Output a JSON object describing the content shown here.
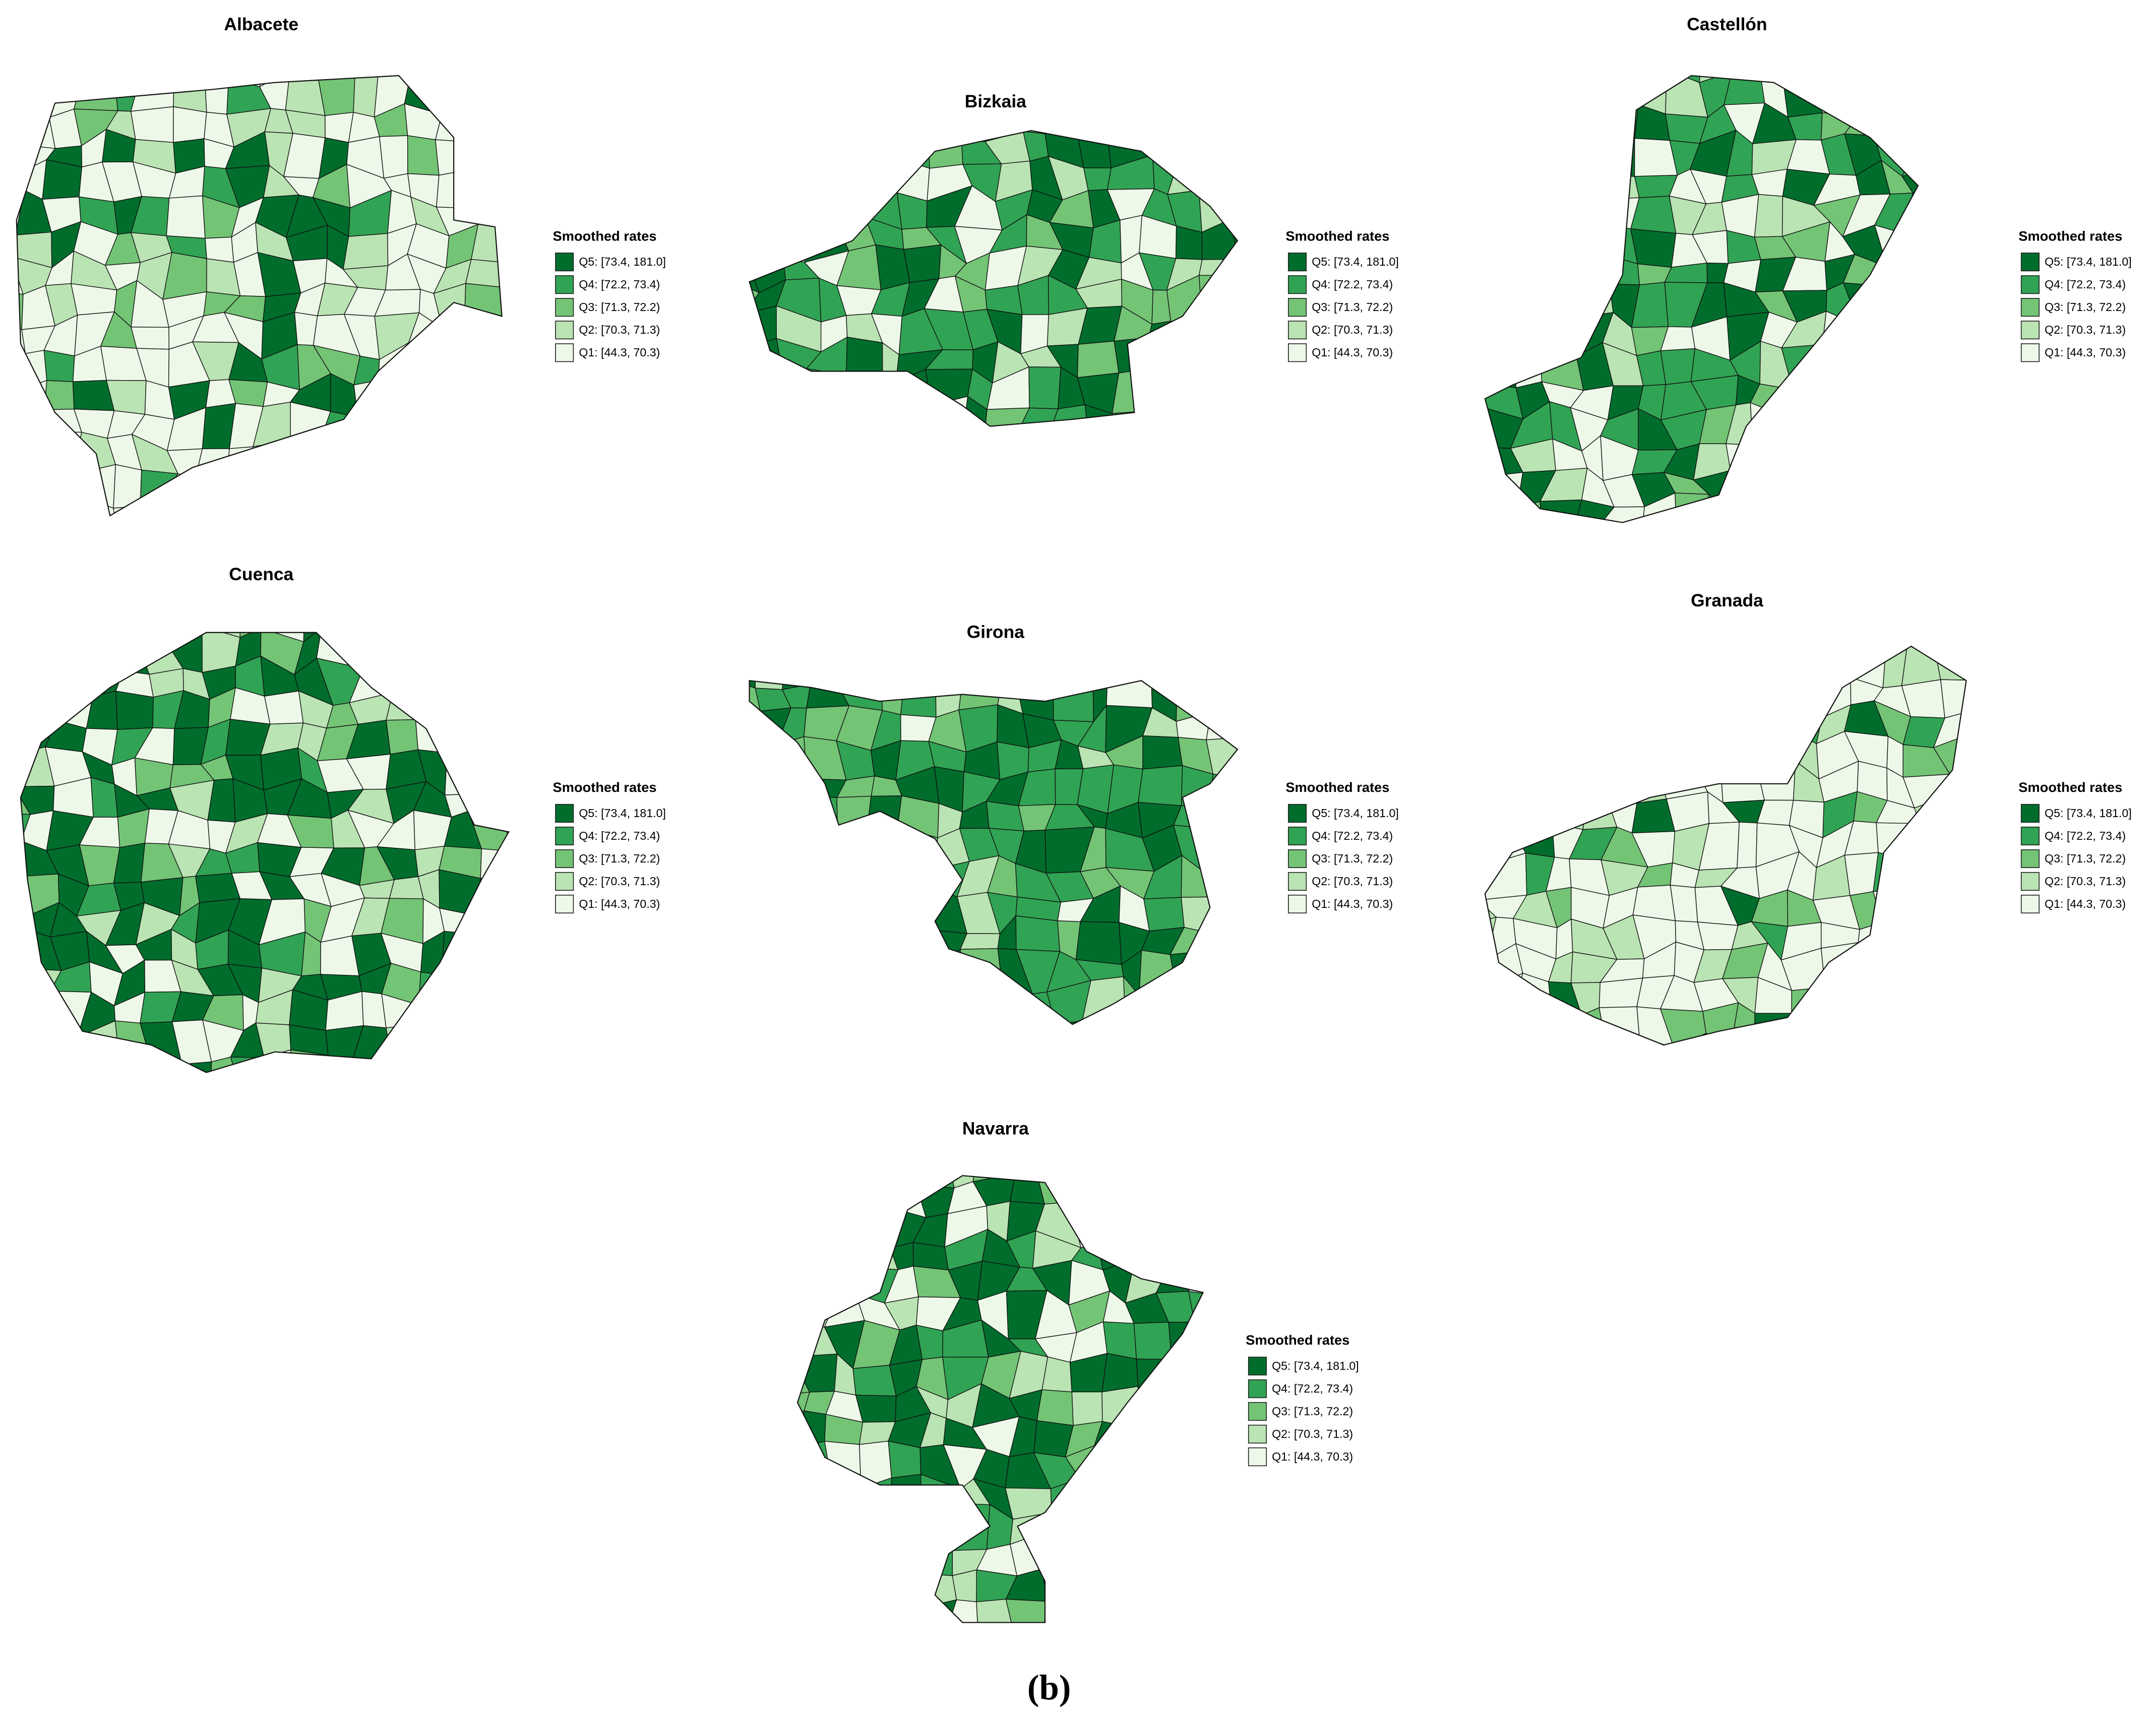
{
  "caption": "(b)",
  "legend": {
    "title": "Smoothed rates",
    "entries": [
      {
        "label": "Q5: [73.4, 181.0]",
        "color": "#006d2c"
      },
      {
        "label": "Q4: [72.2, 73.4)",
        "color": "#31a354"
      },
      {
        "label": "Q3: [71.3, 72.2)",
        "color": "#74c476"
      },
      {
        "label": "Q2: [70.3, 71.3)",
        "color": "#bae4b3"
      },
      {
        "label": "Q1: [44.3, 70.3)",
        "color": "#edf8e9"
      }
    ]
  },
  "panels": [
    {
      "title": "Albacete"
    },
    {
      "title": "Bizkaia"
    },
    {
      "title": "Castellón"
    },
    {
      "title": "Cuenca"
    },
    {
      "title": "Girona"
    },
    {
      "title": "Granada"
    },
    {
      "title": "Navarra"
    }
  ]
}
